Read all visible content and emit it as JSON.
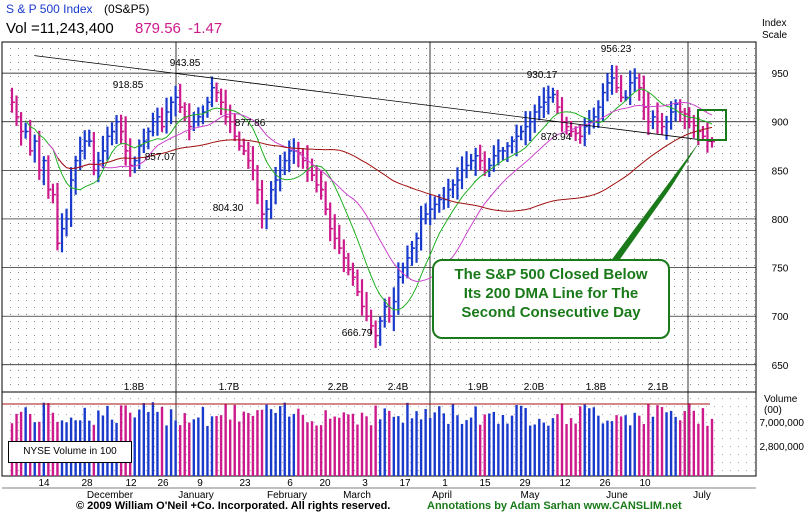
{
  "header": {
    "title": "S & P 500 Index",
    "symbol": "(0S&P5)",
    "volume_label": "Vol =11,243,400",
    "price": "879.56",
    "change": "-1.47"
  },
  "scale_label_line1": "Index",
  "scale_label_line2": "Scale",
  "volume_axis_title": "Volume (00)",
  "volume_legend": "NYSE Volume in 100",
  "callout_lines": [
    "The S&P 500 Closed Below",
    "Its 200 DMA Line for The",
    "Second Consecutive Day"
  ],
  "footer_copyright": "© 2009 William O'Neil +Co. Incorporated. All rights reserved.",
  "footer_annotations": "Annotations by Adam Sarhan www.CANSLIM.net",
  "colors": {
    "up_bar": "#1a3acc",
    "down_bar": "#cc1a8c",
    "ma_short": "#22b022",
    "ma_mid": "#cc44cc",
    "ma_long": "#a01010",
    "trendline": "#000000",
    "callout": "#1a7a1a",
    "header_title": "#1a3acc",
    "header_price": "#cc1a8c"
  },
  "chart_data": {
    "type": "ohlc",
    "y_axis": {
      "ticks": [
        650,
        700,
        750,
        800,
        850,
        900,
        950
      ],
      "range": [
        622,
        982
      ]
    },
    "volume_axis": {
      "ticks": [
        "7,000,000",
        "2,800,000"
      ]
    },
    "x_axis": {
      "day_ticks": [
        "14",
        "28",
        "12",
        "26",
        "9",
        "23",
        "6",
        "20",
        "3",
        "17",
        "1",
        "15",
        "29",
        "12",
        "26",
        "10"
      ],
      "month_labels": [
        "December",
        "January",
        "February",
        "March",
        "April",
        "May",
        "June",
        "July"
      ]
    },
    "price_annotations": [
      "918.85",
      "943.85",
      "857.07",
      "877.86",
      "804.30",
      "666.79",
      "930.17",
      "878.94",
      "956.23"
    ],
    "volume_annotations": [
      "1.8B",
      "1.7B",
      "2.2B",
      "2.4B",
      "1.9B",
      "2.0B",
      "1.8B",
      "2.1B"
    ],
    "series": [
      {
        "kind": "price",
        "closes": [
          920,
          905,
          890,
          890,
          870,
          880,
          850,
          860,
          830,
          825,
          775,
          790,
          800,
          840,
          860,
          870,
          880,
          880,
          850,
          860,
          870,
          885,
          890,
          900,
          890,
          870,
          855,
          860,
          875,
          880,
          890,
          900,
          905,
          895,
          910,
          920,
          925,
          915,
          905,
          895,
          900,
          905,
          910,
          920,
          935,
          930,
          920,
          905,
          900,
          885,
          875,
          870,
          860,
          850,
          830,
          805,
          810,
          830,
          840,
          850,
          860,
          870,
          870,
          868,
          860,
          850,
          845,
          835,
          830,
          810,
          790,
          780,
          770,
          760,
          748,
          740,
          725,
          710,
          700,
          690,
          680,
          695,
          710,
          700,
          715,
          740,
          750,
          760,
          770,
          780,
          800,
          805,
          810,
          815,
          820,
          820,
          830,
          835,
          840,
          850,
          855,
          860,
          865,
          860,
          850,
          855,
          865,
          870,
          870,
          875,
          880,
          885,
          890,
          895,
          900,
          910,
          915,
          920,
          925,
          928,
          915,
          900,
          895,
          890,
          888,
          885,
          895,
          900,
          905,
          915,
          930,
          940,
          945,
          935,
          925,
          925,
          940,
          945,
          935,
          915,
          900,
          905,
          900,
          895,
          900,
          910,
          918,
          910,
          908,
          900,
          896,
          890,
          885,
          880,
          879.56
        ]
      },
      {
        "kind": "volume",
        "note": "daily NYSE volume, relative"
      }
    ]
  }
}
